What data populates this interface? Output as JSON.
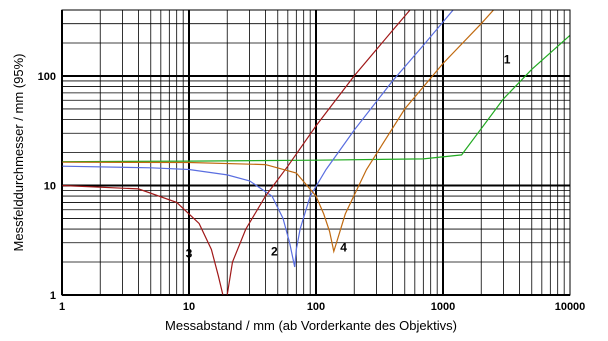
{
  "chart_data": {
    "type": "line",
    "xlabel": "Messabstand / mm (ab Vorderkante des Objektivs)",
    "ylabel": "Messfelddurchmesser / mm (95%)",
    "xscale": "log",
    "yscale": "log",
    "xlim": [
      1,
      10000
    ],
    "ylim": [
      1,
      400
    ],
    "grid": true,
    "x_ticks": [
      "1",
      "10",
      "100",
      "1000",
      "10000"
    ],
    "y_ticks": [
      "1",
      "10",
      "100"
    ],
    "series": [
      {
        "name": "1",
        "color": "#22aa22",
        "points": [
          [
            1,
            16.5
          ],
          [
            10,
            16.7
          ],
          [
            100,
            17
          ],
          [
            700,
            17.5
          ],
          [
            1400,
            19
          ],
          [
            2000,
            33
          ],
          [
            3000,
            62
          ],
          [
            5000,
            115
          ],
          [
            10000,
            235
          ]
        ]
      },
      {
        "name": "2",
        "color": "#5a6ee0",
        "points": [
          [
            1,
            15
          ],
          [
            5,
            14.5
          ],
          [
            10,
            14
          ],
          [
            20,
            12.5
          ],
          [
            30,
            11
          ],
          [
            45,
            8
          ],
          [
            55,
            5
          ],
          [
            62,
            3
          ],
          [
            68,
            1.8
          ],
          [
            70,
            2.6
          ],
          [
            75,
            4
          ],
          [
            90,
            8
          ],
          [
            120,
            14
          ],
          [
            200,
            32
          ],
          [
            400,
            90
          ],
          [
            700,
            190
          ],
          [
            1200,
            400
          ]
        ]
      },
      {
        "name": "3",
        "color": "#a01818",
        "points": [
          [
            1,
            10
          ],
          [
            4,
            9.3
          ],
          [
            8,
            7
          ],
          [
            12,
            4.5
          ],
          [
            15,
            2.6
          ],
          [
            17,
            1.5
          ],
          [
            18.5,
            1
          ],
          [
            20,
            1
          ],
          [
            22,
            2
          ],
          [
            28,
            4
          ],
          [
            40,
            8
          ],
          [
            60,
            15
          ],
          [
            100,
            35
          ],
          [
            200,
            100
          ],
          [
            400,
            260
          ],
          [
            550,
            400
          ]
        ]
      },
      {
        "name": "4",
        "color": "#c06a10",
        "points": [
          [
            1,
            16.3
          ],
          [
            10,
            16.2
          ],
          [
            40,
            15.5
          ],
          [
            70,
            13
          ],
          [
            100,
            8
          ],
          [
            115,
            5.5
          ],
          [
            128,
            3.8
          ],
          [
            138,
            2.5
          ],
          [
            145,
            3
          ],
          [
            170,
            5.5
          ],
          [
            250,
            14
          ],
          [
            500,
            50
          ],
          [
            1000,
            130
          ],
          [
            2000,
            300
          ],
          [
            2500,
            400
          ]
        ]
      }
    ],
    "annotations": [
      {
        "text": "1",
        "x": 3200,
        "y": 130
      },
      {
        "text": "2",
        "x": 47,
        "y": 2.3
      },
      {
        "text": "3",
        "x": 10,
        "y": 2.2
      },
      {
        "text": "4",
        "x": 165,
        "y": 2.5
      }
    ]
  }
}
